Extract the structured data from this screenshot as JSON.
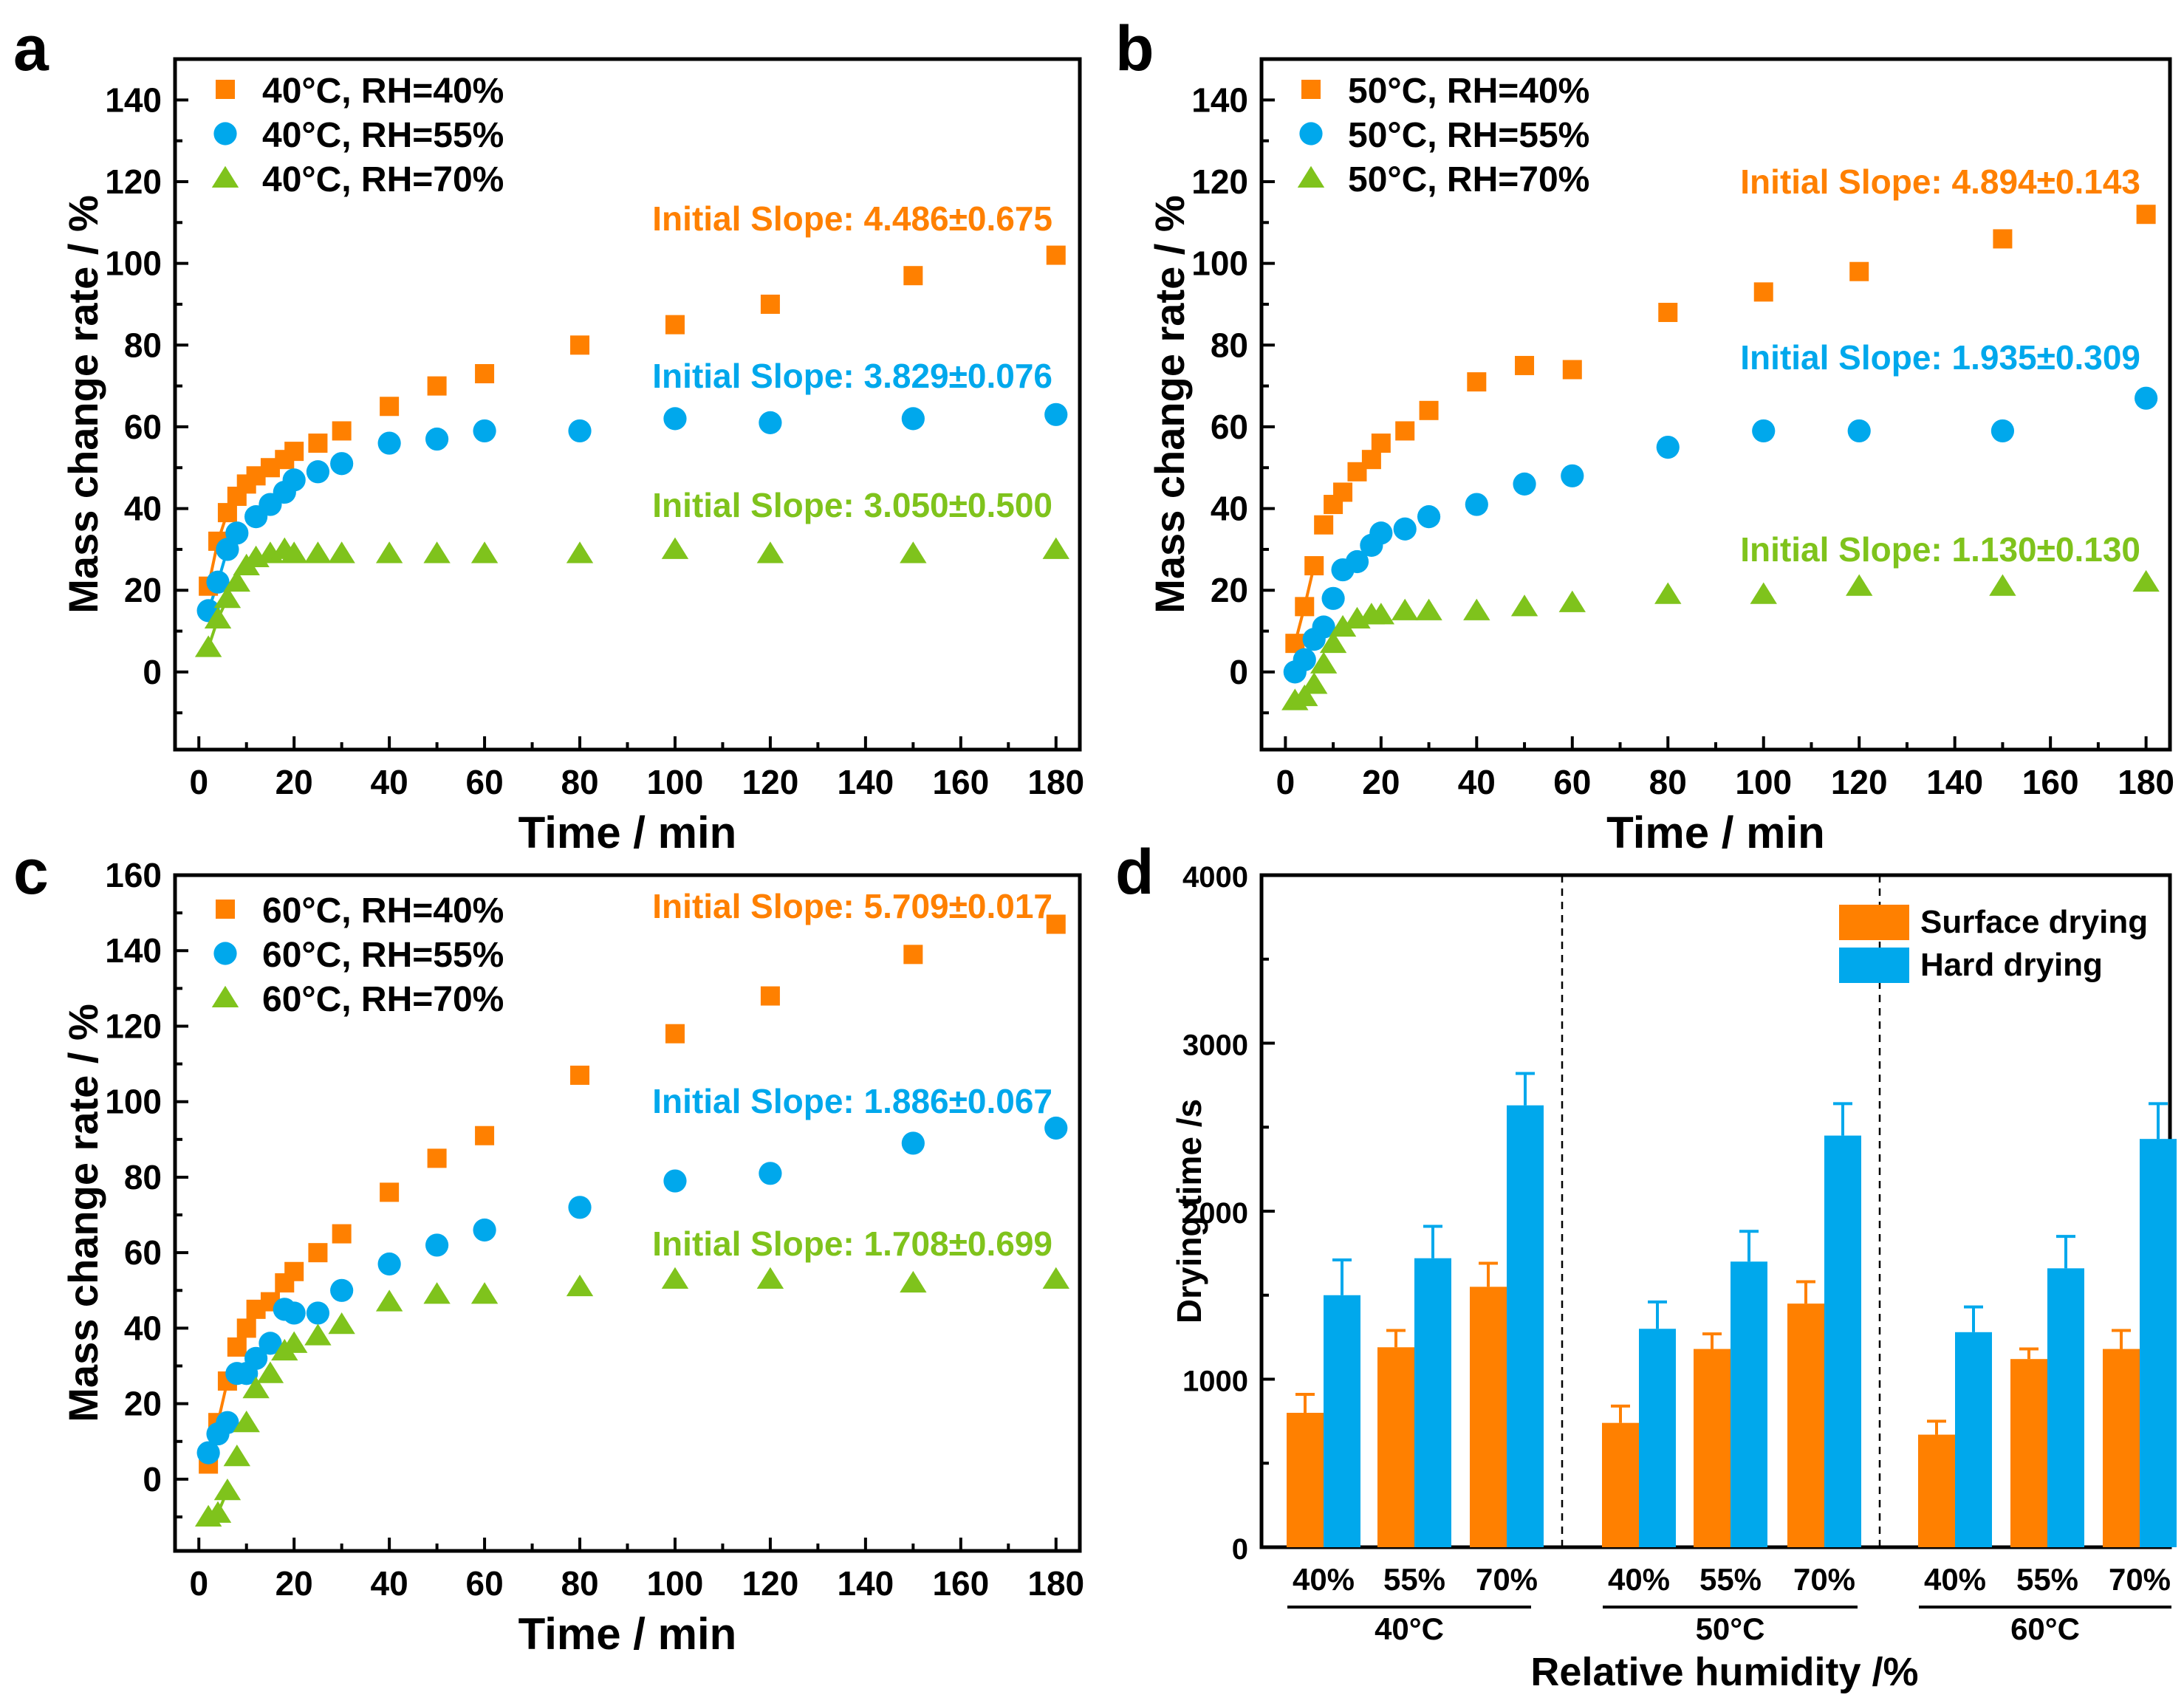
{
  "colors": {
    "orange": "#ff8000",
    "blue": "#00a8ec",
    "green": "#7fc31c",
    "axis": "#000000"
  },
  "chart_data": [
    {
      "panel": "a",
      "type": "scatter",
      "xlabel": "Time / min",
      "ylabel": "Mass change rate / %",
      "xlim": [
        -5,
        185
      ],
      "ylim": [
        -19,
        150
      ],
      "xticks": [
        0,
        20,
        40,
        60,
        80,
        100,
        120,
        140,
        160,
        180
      ],
      "yticks": [
        0,
        20,
        40,
        60,
        80,
        100,
        120,
        140
      ],
      "legend_position": "top-left",
      "series": [
        {
          "name": "40°C, RH=40%",
          "marker": "square",
          "color": "orange",
          "x": [
            2,
            4,
            6,
            8,
            10,
            12,
            15,
            18,
            20,
            25,
            30,
            40,
            50,
            60,
            80,
            100,
            120,
            150,
            180
          ],
          "y": [
            21,
            32,
            39,
            43,
            46,
            48,
            50,
            52,
            54,
            56,
            59,
            65,
            70,
            73,
            80,
            85,
            90,
            97,
            102
          ]
        },
        {
          "name": "40°C, RH=55%",
          "marker": "circle",
          "color": "blue",
          "x": [
            2,
            4,
            6,
            8,
            12,
            15,
            18,
            20,
            25,
            30,
            40,
            50,
            60,
            80,
            100,
            120,
            150,
            180
          ],
          "y": [
            15,
            22,
            30,
            34,
            38,
            41,
            44,
            47,
            49,
            51,
            56,
            57,
            59,
            59,
            62,
            61,
            62,
            63
          ]
        },
        {
          "name": "40°C, RH=70%",
          "marker": "triangle",
          "color": "green",
          "x": [
            2,
            4,
            6,
            8,
            10,
            12,
            15,
            18,
            20,
            25,
            30,
            40,
            50,
            60,
            80,
            100,
            120,
            150,
            180
          ],
          "y": [
            6,
            13,
            18,
            22,
            26,
            28,
            29,
            30,
            29,
            29,
            29,
            29,
            29,
            29,
            29,
            30,
            29,
            29,
            30
          ]
        }
      ],
      "annotations": [
        {
          "text": "Initial Slope: 4.486±0.675",
          "color": "orange"
        },
        {
          "text": "Initial Slope: 3.829±0.076",
          "color": "blue"
        },
        {
          "text": "Initial Slope: 3.050±0.500",
          "color": "green"
        }
      ],
      "fit_lines": [
        {
          "color": "orange",
          "x": [
            2,
            4,
            6
          ],
          "y": [
            21,
            32,
            39
          ]
        },
        {
          "color": "blue",
          "x": [
            2,
            4,
            6
          ],
          "y": [
            15,
            22,
            30
          ]
        },
        {
          "color": "green",
          "x": [
            2,
            4,
            6
          ],
          "y": [
            6,
            13,
            18
          ]
        }
      ]
    },
    {
      "panel": "b",
      "type": "scatter",
      "xlabel": "Time / min",
      "ylabel": "Mass change rate / %",
      "xlim": [
        -5,
        185
      ],
      "ylim": [
        -19,
        150
      ],
      "xticks": [
        0,
        20,
        40,
        60,
        80,
        100,
        120,
        140,
        160,
        180
      ],
      "yticks": [
        0,
        20,
        40,
        60,
        80,
        100,
        120,
        140
      ],
      "legend_position": "top-left",
      "series": [
        {
          "name": "50°C, RH=40%",
          "marker": "square",
          "color": "orange",
          "x": [
            2,
            4,
            6,
            8,
            10,
            12,
            15,
            18,
            20,
            25,
            30,
            40,
            50,
            60,
            80,
            100,
            120,
            150,
            180
          ],
          "y": [
            7,
            16,
            26,
            36,
            41,
            44,
            49,
            52,
            56,
            59,
            64,
            71,
            75,
            74,
            88,
            93,
            98,
            106,
            112
          ]
        },
        {
          "name": "50°C, RH=55%",
          "marker": "circle",
          "color": "blue",
          "x": [
            2,
            4,
            6,
            8,
            10,
            12,
            15,
            18,
            20,
            25,
            30,
            40,
            50,
            60,
            80,
            100,
            120,
            150,
            180
          ],
          "y": [
            0,
            3,
            8,
            11,
            18,
            25,
            27,
            31,
            34,
            35,
            38,
            41,
            46,
            48,
            55,
            59,
            59,
            59,
            67
          ]
        },
        {
          "name": "50°C, RH=70%",
          "marker": "triangle",
          "color": "green",
          "x": [
            2,
            4,
            6,
            8,
            10,
            12,
            15,
            18,
            20,
            25,
            30,
            40,
            50,
            60,
            80,
            100,
            120,
            150,
            180
          ],
          "y": [
            -7,
            -6,
            -3,
            2,
            7,
            11,
            13,
            14,
            14,
            15,
            15,
            15,
            16,
            17,
            19,
            19,
            21,
            21,
            22
          ]
        }
      ],
      "annotations": [
        {
          "text": "Initial Slope: 4.894±0.143",
          "color": "orange"
        },
        {
          "text": "Initial Slope: 1.935±0.309",
          "color": "blue"
        },
        {
          "text": "Initial Slope: 1.130±0.130",
          "color": "green"
        }
      ],
      "fit_lines": [
        {
          "color": "orange",
          "x": [
            2,
            4,
            6
          ],
          "y": [
            7,
            16,
            26
          ]
        },
        {
          "color": "blue",
          "x": [
            2,
            4,
            6
          ],
          "y": [
            0,
            3,
            8
          ]
        },
        {
          "color": "green",
          "x": [
            2,
            4,
            6
          ],
          "y": [
            -7,
            -6,
            -3
          ]
        }
      ]
    },
    {
      "panel": "c",
      "type": "scatter",
      "xlabel": "Time / min",
      "ylabel": "Mass change rate / %",
      "xlim": [
        -5,
        185
      ],
      "ylim": [
        -19,
        160
      ],
      "xticks": [
        0,
        20,
        40,
        60,
        80,
        100,
        120,
        140,
        160,
        180
      ],
      "yticks": [
        0,
        20,
        40,
        60,
        80,
        100,
        120,
        140,
        160
      ],
      "legend_position": "top-left",
      "series": [
        {
          "name": "60°C, RH=40%",
          "marker": "square",
          "color": "orange",
          "x": [
            2,
            4,
            6,
            8,
            10,
            12,
            15,
            18,
            20,
            25,
            30,
            40,
            50,
            60,
            80,
            100,
            120,
            150,
            180
          ],
          "y": [
            4,
            15,
            26,
            35,
            40,
            45,
            47,
            52,
            55,
            60,
            65,
            76,
            85,
            91,
            107,
            118,
            128,
            139,
            147
          ]
        },
        {
          "name": "60°C, RH=55%",
          "marker": "circle",
          "color": "blue",
          "x": [
            2,
            4,
            6,
            8,
            10,
            12,
            15,
            18,
            20,
            25,
            30,
            40,
            50,
            60,
            80,
            100,
            120,
            150,
            180
          ],
          "y": [
            7,
            12,
            15,
            28,
            28,
            32,
            36,
            45,
            44,
            44,
            50,
            57,
            62,
            66,
            72,
            79,
            81,
            89,
            93
          ]
        },
        {
          "name": "60°C, RH=70%",
          "marker": "triangle",
          "color": "green",
          "x": [
            2,
            4,
            6,
            8,
            10,
            12,
            15,
            18,
            20,
            25,
            30,
            40,
            50,
            60,
            80,
            100,
            120,
            150,
            180
          ],
          "y": [
            -10,
            -9,
            -3,
            6,
            15,
            24,
            28,
            34,
            36,
            38,
            41,
            47,
            49,
            49,
            51,
            53,
            53,
            52,
            53
          ]
        }
      ],
      "annotations": [
        {
          "text": "Initial Slope: 5.709±0.017",
          "color": "orange"
        },
        {
          "text": "Initial Slope: 1.886±0.067",
          "color": "blue"
        },
        {
          "text": "Initial Slope: 1.708±0.699",
          "color": "green"
        }
      ],
      "fit_lines": [
        {
          "color": "orange",
          "x": [
            2,
            4,
            6
          ],
          "y": [
            4,
            15,
            26
          ]
        },
        {
          "color": "blue",
          "x": [
            2,
            4,
            6
          ],
          "y": [
            7,
            12,
            15
          ]
        },
        {
          "color": "green",
          "x": [
            2,
            4,
            6
          ],
          "y": [
            -10,
            -9,
            -3
          ]
        }
      ]
    },
    {
      "panel": "d",
      "type": "bar",
      "xlabel": "Relative humidity /%",
      "ylabel": "Drying time /s",
      "ylim": [
        0,
        4000
      ],
      "yticks": [
        0,
        1000,
        2000,
        3000,
        4000
      ],
      "categories": [
        "40%",
        "55%",
        "70%",
        "40%",
        "55%",
        "70%",
        "40%",
        "55%",
        "70%"
      ],
      "groups": [
        "40°C",
        "50°C",
        "60°C"
      ],
      "legend_position": "top-right",
      "series": [
        {
          "name": "Surface drying",
          "color": "orange",
          "values": [
            800,
            1190,
            1550,
            740,
            1180,
            1450,
            670,
            1120,
            1180
          ],
          "errors": [
            110,
            100,
            140,
            100,
            90,
            130,
            80,
            60,
            110
          ]
        },
        {
          "name": "Hard drying",
          "color": "blue",
          "values": [
            1500,
            1720,
            2630,
            1300,
            1700,
            2450,
            1280,
            1660,
            2430
          ],
          "errors": [
            210,
            190,
            190,
            160,
            180,
            190,
            150,
            190,
            210
          ]
        }
      ]
    }
  ]
}
